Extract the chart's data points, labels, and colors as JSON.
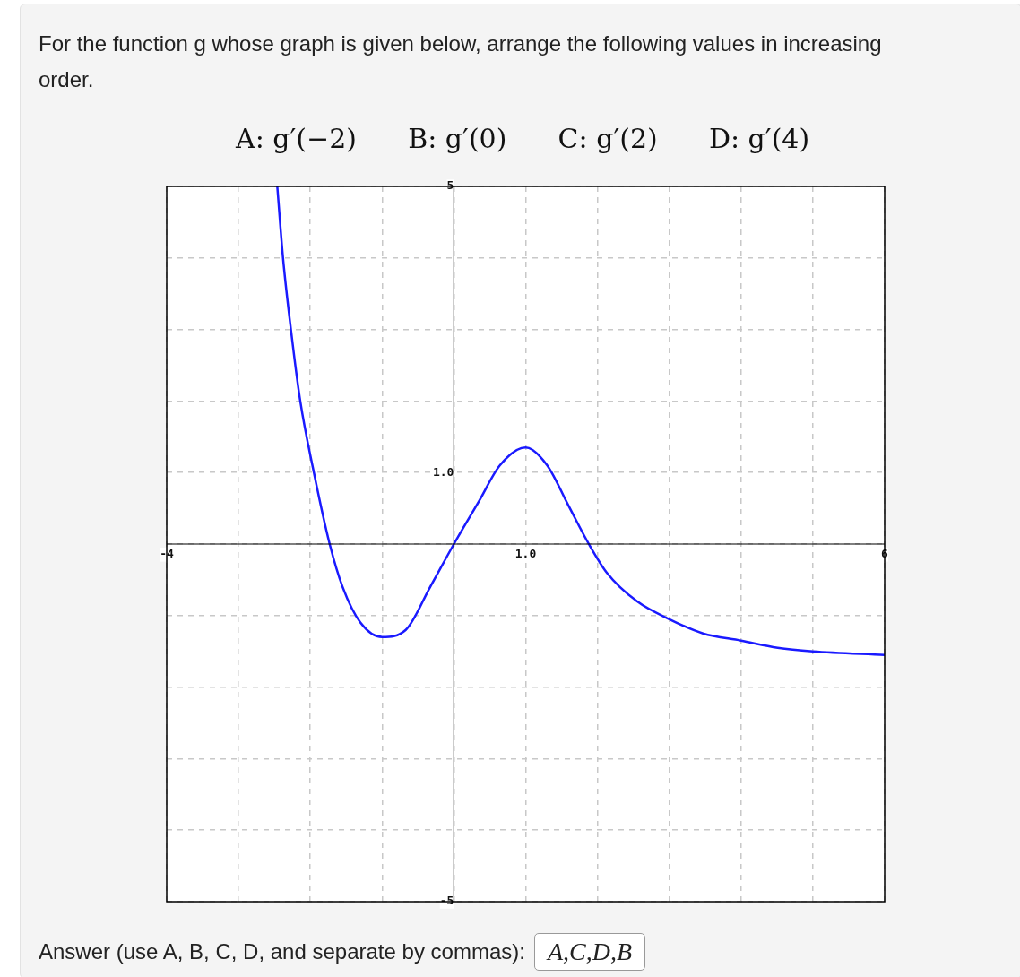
{
  "chart_data": {
    "type": "line",
    "title": "For the function g whose graph is given below, arrange the following values in increasing order.",
    "subtitle": "A: g′(−2)      B: g′(0)      C: g′(2)      D: g′(4)",
    "annotations": [
      "Answer (use A, B, C, D, and separate by commas):",
      "A,C,D,B"
    ],
    "x": [
      -2.46,
      -2.38,
      -2.27,
      -2.14,
      -1.95,
      -1.73,
      -1.55,
      -1.3,
      -1.0,
      -0.67,
      -0.33,
      0,
      0.35,
      0.64,
      1.0,
      1.3,
      1.59,
      1.88,
      2.13,
      2.55,
      3,
      3.47,
      4,
      4.51,
      5,
      6
    ],
    "series": [
      {
        "color": "#1a1aff",
        "values": [
          5,
          4,
          3,
          2,
          1,
          0,
          -0.6,
          -1.1,
          -1.3,
          -1.2,
          -0.6,
          0,
          0.6,
          1.1,
          1.35,
          1.1,
          0.55,
          0,
          -0.4,
          -0.8,
          -1.05,
          -1.25,
          -1.35,
          -1.45,
          -1.5,
          -1.55
        ]
      }
    ],
    "xlim": [
      -4,
      6
    ],
    "ylim": [
      -5,
      5
    ],
    "xticks": [
      {
        "value": -4,
        "label": "-4"
      },
      {
        "value": -3,
        "label": null
      },
      {
        "value": -2,
        "label": null
      },
      {
        "value": -1,
        "label": null
      },
      {
        "value": 0,
        "label": null
      },
      {
        "value": 1,
        "label": "1.0"
      },
      {
        "value": 2,
        "label": null
      },
      {
        "value": 3,
        "label": null
      },
      {
        "value": 4,
        "label": null
      },
      {
        "value": 5,
        "label": null
      },
      {
        "value": 6,
        "label": "6"
      }
    ],
    "yticks": [
      {
        "value": -5,
        "label": "-5"
      },
      {
        "value": -4,
        "label": null
      },
      {
        "value": -3,
        "label": null
      },
      {
        "value": -2,
        "label": null
      },
      {
        "value": -1,
        "label": null
      },
      {
        "value": 0,
        "label": null
      },
      {
        "value": 1,
        "label": "1.0"
      },
      {
        "value": 2,
        "label": null
      },
      {
        "value": 3,
        "label": null
      },
      {
        "value": 4,
        "label": null
      },
      {
        "value": 5,
        "label": "5"
      }
    ],
    "grid": true,
    "legend": false,
    "marker": "none",
    "line_style": "solid"
  }
}
